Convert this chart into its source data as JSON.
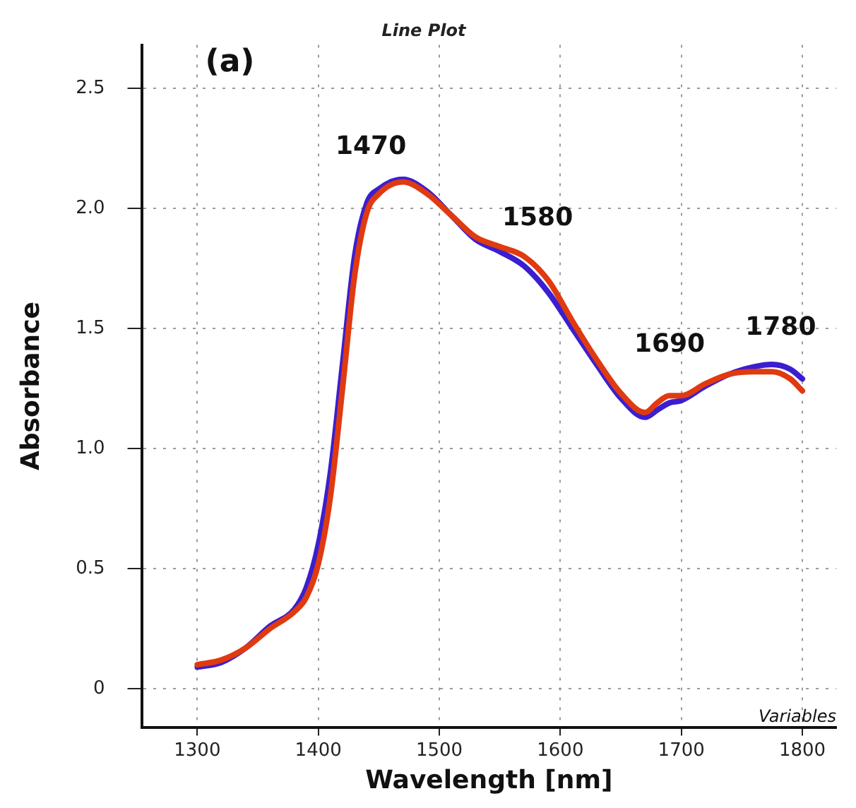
{
  "chart_data": {
    "type": "line",
    "title": "Line Plot",
    "xlabel": "Wavelength [nm]",
    "ylabel": "Absorbance",
    "annotations": [
      "(a)",
      "Variables",
      "1470",
      "1580",
      "1690",
      "1780"
    ],
    "x": [
      1300,
      1320,
      1340,
      1360,
      1380,
      1390,
      1400,
      1410,
      1420,
      1430,
      1440,
      1450,
      1470,
      1490,
      1510,
      1530,
      1550,
      1570,
      1590,
      1610,
      1630,
      1650,
      1670,
      1680,
      1690,
      1700,
      1720,
      1740,
      1760,
      1775,
      1790,
      1800
    ],
    "series": [
      {
        "color": "#e03a10",
        "values": [
          0.1,
          0.12,
          0.17,
          0.25,
          0.32,
          0.38,
          0.52,
          0.8,
          1.25,
          1.72,
          1.98,
          2.06,
          2.11,
          2.06,
          1.97,
          1.88,
          1.84,
          1.8,
          1.7,
          1.53,
          1.37,
          1.23,
          1.15,
          1.19,
          1.22,
          1.22,
          1.27,
          1.31,
          1.32,
          1.32,
          1.29,
          1.24
        ]
      },
      {
        "color": "#3a1fd0",
        "values": [
          0.09,
          0.11,
          0.17,
          0.26,
          0.33,
          0.42,
          0.6,
          0.9,
          1.35,
          1.8,
          2.02,
          2.08,
          2.12,
          2.07,
          1.97,
          1.87,
          1.82,
          1.76,
          1.65,
          1.5,
          1.35,
          1.21,
          1.13,
          1.16,
          1.19,
          1.2,
          1.26,
          1.31,
          1.34,
          1.35,
          1.33,
          1.29
        ]
      }
    ],
    "xlim": [
      1254,
      1828
    ],
    "ylim": [
      -0.16,
      2.68
    ],
    "xticks": [
      1300,
      1400,
      1500,
      1600,
      1700,
      1800
    ],
    "yticks": [
      0,
      {
        "value": 0.5,
        "label": "0.5"
      },
      {
        "value": 1,
        "label": "1.0"
      },
      {
        "value": 1.5,
        "label": "1.5"
      },
      {
        "value": 2,
        "label": "2.0"
      },
      {
        "value": 2.5,
        "label": "2.5"
      }
    ],
    "grid": true,
    "legend": false,
    "marker": "none",
    "line_style": "solid"
  }
}
